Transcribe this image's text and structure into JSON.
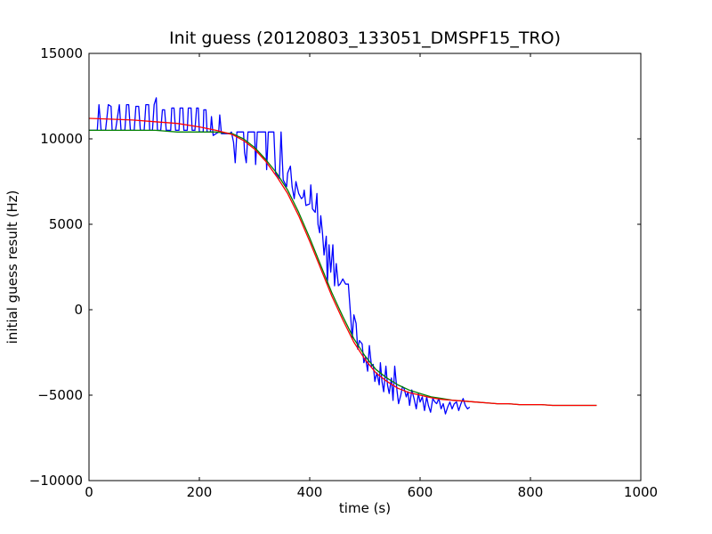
{
  "chart_data": {
    "type": "line",
    "title": "Init guess (20120803_133051_DMSPF15_TRO)",
    "xlabel": "time (s)",
    "ylabel": "initial guess result (Hz)",
    "xlim": [
      0,
      1000
    ],
    "ylim": [
      -10000,
      15000
    ],
    "xticks": [
      0,
      200,
      400,
      600,
      800,
      1000
    ],
    "yticks": [
      -10000,
      -5000,
      0,
      5000,
      10000,
      15000
    ],
    "grid": false,
    "series": [
      {
        "color": "#0000ff",
        "points": [
          [
            0,
            10500
          ],
          [
            15,
            10500
          ],
          [
            18,
            12000
          ],
          [
            22,
            10500
          ],
          [
            30,
            10500
          ],
          [
            35,
            12000
          ],
          [
            40,
            11900
          ],
          [
            42,
            10500
          ],
          [
            48,
            10500
          ],
          [
            55,
            12000
          ],
          [
            58,
            10500
          ],
          [
            65,
            10500
          ],
          [
            68,
            12000
          ],
          [
            72,
            12000
          ],
          [
            75,
            10500
          ],
          [
            82,
            10500
          ],
          [
            85,
            11900
          ],
          [
            90,
            11900
          ],
          [
            93,
            10500
          ],
          [
            100,
            10500
          ],
          [
            103,
            12000
          ],
          [
            108,
            12000
          ],
          [
            110,
            10500
          ],
          [
            115,
            10500
          ],
          [
            118,
            12000
          ],
          [
            122,
            12400
          ],
          [
            124,
            10500
          ],
          [
            130,
            10500
          ],
          [
            133,
            11700
          ],
          [
            137,
            11700
          ],
          [
            140,
            10500
          ],
          [
            148,
            10500
          ],
          [
            150,
            11800
          ],
          [
            154,
            11800
          ],
          [
            157,
            10500
          ],
          [
            163,
            10500
          ],
          [
            165,
            11800
          ],
          [
            170,
            11800
          ],
          [
            172,
            10500
          ],
          [
            178,
            10500
          ],
          [
            180,
            11800
          ],
          [
            185,
            11800
          ],
          [
            187,
            10500
          ],
          [
            192,
            10500
          ],
          [
            195,
            11800
          ],
          [
            198,
            11800
          ],
          [
            200,
            10400
          ],
          [
            207,
            10400
          ],
          [
            208,
            11700
          ],
          [
            212,
            11700
          ],
          [
            214,
            10400
          ],
          [
            220,
            10400
          ],
          [
            222,
            11300
          ],
          [
            225,
            10200
          ],
          [
            235,
            10400
          ],
          [
            237,
            11400
          ],
          [
            240,
            10300
          ],
          [
            255,
            10300
          ],
          [
            258,
            10400
          ],
          [
            262,
            9800
          ],
          [
            265,
            8600
          ],
          [
            268,
            10400
          ],
          [
            280,
            10400
          ],
          [
            282,
            9200
          ],
          [
            285,
            8600
          ],
          [
            288,
            10400
          ],
          [
            300,
            10400
          ],
          [
            302,
            8500
          ],
          [
            305,
            10400
          ],
          [
            320,
            10400
          ],
          [
            322,
            8200
          ],
          [
            325,
            10400
          ],
          [
            335,
            10400
          ],
          [
            338,
            8000
          ],
          [
            345,
            7700
          ],
          [
            348,
            10400
          ],
          [
            352,
            7600
          ],
          [
            358,
            7200
          ],
          [
            360,
            8000
          ],
          [
            365,
            8400
          ],
          [
            368,
            7200
          ],
          [
            372,
            6500
          ],
          [
            375,
            7500
          ],
          [
            380,
            6800
          ],
          [
            385,
            6500
          ],
          [
            388,
            6600
          ],
          [
            390,
            7000
          ],
          [
            393,
            6100
          ],
          [
            400,
            6200
          ],
          [
            402,
            7300
          ],
          [
            405,
            5900
          ],
          [
            410,
            5700
          ],
          [
            413,
            6800
          ],
          [
            415,
            5000
          ],
          [
            418,
            4500
          ],
          [
            420,
            5500
          ],
          [
            423,
            4500
          ],
          [
            426,
            3200
          ],
          [
            430,
            4300
          ],
          [
            432,
            1500
          ],
          [
            435,
            3800
          ],
          [
            438,
            2200
          ],
          [
            442,
            3800
          ],
          [
            445,
            1400
          ],
          [
            448,
            2700
          ],
          [
            452,
            1400
          ],
          [
            455,
            1500
          ],
          [
            460,
            1800
          ],
          [
            465,
            1500
          ],
          [
            470,
            1500
          ],
          [
            474,
            -300
          ],
          [
            477,
            -1700
          ],
          [
            480,
            -300
          ],
          [
            484,
            -800
          ],
          [
            487,
            -2300
          ],
          [
            490,
            -1800
          ],
          [
            495,
            -2000
          ],
          [
            498,
            -3100
          ],
          [
            501,
            -2800
          ],
          [
            503,
            -3200
          ],
          [
            505,
            -3600
          ],
          [
            508,
            -2100
          ],
          [
            512,
            -3300
          ],
          [
            515,
            -3200
          ],
          [
            518,
            -4200
          ],
          [
            520,
            -3900
          ],
          [
            522,
            -3700
          ],
          [
            526,
            -4400
          ],
          [
            528,
            -3100
          ],
          [
            531,
            -4200
          ],
          [
            534,
            -4800
          ],
          [
            538,
            -3300
          ],
          [
            541,
            -4400
          ],
          [
            544,
            -4900
          ],
          [
            548,
            -4000
          ],
          [
            551,
            -5300
          ],
          [
            554,
            -3300
          ],
          [
            558,
            -4700
          ],
          [
            561,
            -5500
          ],
          [
            565,
            -5000
          ],
          [
            568,
            -4500
          ],
          [
            571,
            -4600
          ],
          [
            575,
            -5100
          ],
          [
            578,
            -4800
          ],
          [
            581,
            -5600
          ],
          [
            585,
            -4700
          ],
          [
            589,
            -5200
          ],
          [
            593,
            -5800
          ],
          [
            597,
            -4900
          ],
          [
            600,
            -5400
          ],
          [
            604,
            -5100
          ],
          [
            608,
            -5900
          ],
          [
            612,
            -5100
          ],
          [
            615,
            -5600
          ],
          [
            619,
            -6000
          ],
          [
            623,
            -5200
          ],
          [
            627,
            -5400
          ],
          [
            630,
            -5500
          ],
          [
            634,
            -5200
          ],
          [
            638,
            -5800
          ],
          [
            642,
            -5500
          ],
          [
            646,
            -6100
          ],
          [
            650,
            -5700
          ],
          [
            654,
            -5400
          ],
          [
            658,
            -5800
          ],
          [
            662,
            -5500
          ],
          [
            666,
            -5400
          ],
          [
            670,
            -5900
          ],
          [
            674,
            -5500
          ],
          [
            678,
            -5200
          ],
          [
            682,
            -5600
          ],
          [
            686,
            -5800
          ],
          [
            690,
            -5700
          ]
        ]
      },
      {
        "color": "#008000",
        "points": [
          [
            0,
            10500
          ],
          [
            40,
            10500
          ],
          [
            80,
            10500
          ],
          [
            120,
            10500
          ],
          [
            160,
            10400
          ],
          [
            200,
            10400
          ],
          [
            230,
            10400
          ],
          [
            260,
            10300
          ],
          [
            280,
            10000
          ],
          [
            300,
            9500
          ],
          [
            320,
            8800
          ],
          [
            340,
            8000
          ],
          [
            360,
            7000
          ],
          [
            380,
            5700
          ],
          [
            400,
            4200
          ],
          [
            420,
            2600
          ],
          [
            440,
            1000
          ],
          [
            460,
            -400
          ],
          [
            480,
            -1700
          ],
          [
            500,
            -2700
          ],
          [
            520,
            -3500
          ],
          [
            540,
            -4000
          ],
          [
            560,
            -4400
          ],
          [
            580,
            -4700
          ],
          [
            600,
            -4900
          ],
          [
            620,
            -5100
          ],
          [
            640,
            -5200
          ],
          [
            660,
            -5300
          ],
          [
            680,
            -5350
          ],
          [
            700,
            -5400
          ],
          [
            720,
            -5450
          ],
          [
            740,
            -5500
          ],
          [
            760,
            -5500
          ],
          [
            780,
            -5550
          ],
          [
            800,
            -5550
          ],
          [
            820,
            -5550
          ],
          [
            840,
            -5600
          ],
          [
            860,
            -5600
          ],
          [
            880,
            -5600
          ],
          [
            900,
            -5600
          ],
          [
            920,
            -5600
          ]
        ]
      },
      {
        "color": "#ff0000",
        "points": [
          [
            0,
            11200
          ],
          [
            40,
            11150
          ],
          [
            80,
            11100
          ],
          [
            120,
            11000
          ],
          [
            160,
            10900
          ],
          [
            200,
            10700
          ],
          [
            230,
            10500
          ],
          [
            260,
            10250
          ],
          [
            280,
            9900
          ],
          [
            300,
            9400
          ],
          [
            320,
            8700
          ],
          [
            340,
            7800
          ],
          [
            360,
            6800
          ],
          [
            380,
            5500
          ],
          [
            400,
            4000
          ],
          [
            420,
            2400
          ],
          [
            440,
            800
          ],
          [
            460,
            -600
          ],
          [
            480,
            -1900
          ],
          [
            500,
            -2900
          ],
          [
            520,
            -3700
          ],
          [
            540,
            -4200
          ],
          [
            560,
            -4600
          ],
          [
            580,
            -4850
          ],
          [
            600,
            -5000
          ],
          [
            620,
            -5150
          ],
          [
            640,
            -5250
          ],
          [
            660,
            -5300
          ],
          [
            680,
            -5350
          ],
          [
            700,
            -5400
          ],
          [
            720,
            -5450
          ],
          [
            740,
            -5500
          ],
          [
            760,
            -5500
          ],
          [
            780,
            -5550
          ],
          [
            800,
            -5550
          ],
          [
            820,
            -5550
          ],
          [
            840,
            -5600
          ],
          [
            860,
            -5600
          ],
          [
            880,
            -5600
          ],
          [
            900,
            -5600
          ],
          [
            920,
            -5600
          ]
        ]
      }
    ]
  }
}
